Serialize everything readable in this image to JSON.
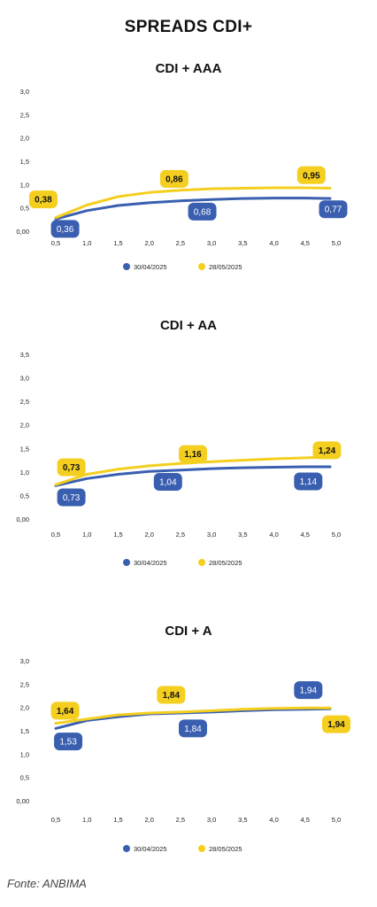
{
  "page_title": "SPREADS CDI+",
  "source": "Fonte: ANBIMA",
  "colors": {
    "series_a": "#3A5FB0",
    "series_b": "#F5CF1F",
    "axis_text": "#222222"
  },
  "chart_data": [
    {
      "type": "line",
      "title": "CDI + AAA",
      "xlabel": "",
      "ylabel": "",
      "xlim": [
        0.25,
        5.0
      ],
      "ylim": [
        0,
        3.0
      ],
      "x_ticks": [
        "0,5",
        "1,0",
        "1,5",
        "2,0",
        "2,5",
        "3,0",
        "3,5",
        "4,0",
        "4,5",
        "5,0"
      ],
      "y_ticks": [
        "0,00",
        "0,5",
        "1,0",
        "1,5",
        "2,0",
        "2,5",
        "3,0"
      ],
      "legend": "bottom",
      "grid": false,
      "series": [
        {
          "name": "30/04/2025",
          "color": "#3A5FB0",
          "x": [
            0.5,
            1.0,
            1.5,
            2.0,
            2.5,
            3.0,
            3.5,
            4.0,
            4.5,
            4.9
          ],
          "y": [
            0.26,
            0.44,
            0.55,
            0.61,
            0.65,
            0.68,
            0.7,
            0.71,
            0.71,
            0.7
          ]
        },
        {
          "name": "28/05/2025",
          "color": "#F5CF1F",
          "x": [
            0.5,
            1.0,
            1.5,
            2.0,
            2.5,
            3.0,
            3.5,
            4.0,
            4.5,
            4.9
          ],
          "y": [
            0.29,
            0.56,
            0.74,
            0.83,
            0.88,
            0.91,
            0.92,
            0.93,
            0.93,
            0.92
          ]
        }
      ],
      "labels": [
        {
          "text": "0,38",
          "series": 1,
          "x": 0.3,
          "y": 0.68
        },
        {
          "text": "0,36",
          "series": 0,
          "x": 0.65,
          "y": 0.05
        },
        {
          "text": "0,86",
          "series": 1,
          "x": 2.4,
          "y": 1.12
        },
        {
          "text": "0,68",
          "series": 0,
          "x": 2.85,
          "y": 0.42
        },
        {
          "text": "0,95",
          "series": 1,
          "x": 4.6,
          "y": 1.2
        },
        {
          "text": "0,77",
          "series": 0,
          "x": 4.95,
          "y": 0.47
        }
      ]
    },
    {
      "type": "line",
      "title": "CDI + AA",
      "xlabel": "",
      "ylabel": "",
      "xlim": [
        0.25,
        5.0
      ],
      "ylim": [
        0,
        3.5
      ],
      "x_ticks": [
        "0,5",
        "1,0",
        "1,5",
        "2,0",
        "2,5",
        "3,0",
        "3,5",
        "4,0",
        "4,5",
        "5,0"
      ],
      "y_ticks": [
        "0,00",
        "0,5",
        "1,0",
        "1,5",
        "2,0",
        "2,5",
        "3,0",
        "3,5"
      ],
      "legend": "bottom",
      "grid": false,
      "series": [
        {
          "name": "30/04/2025",
          "color": "#3A5FB0",
          "x": [
            0.5,
            1.0,
            1.5,
            2.0,
            2.5,
            3.0,
            3.5,
            4.0,
            4.5,
            4.9
          ],
          "y": [
            0.71,
            0.86,
            0.95,
            1.01,
            1.04,
            1.07,
            1.09,
            1.1,
            1.11,
            1.11
          ]
        },
        {
          "name": "28/05/2025",
          "color": "#F5CF1F",
          "x": [
            0.5,
            1.0,
            1.5,
            2.0,
            2.5,
            3.0,
            3.5,
            4.0,
            4.5,
            4.9
          ],
          "y": [
            0.73,
            0.95,
            1.06,
            1.13,
            1.18,
            1.22,
            1.25,
            1.28,
            1.3,
            1.32
          ]
        }
      ],
      "labels": [
        {
          "text": "0,73",
          "series": 1,
          "x": 0.75,
          "y": 1.1
        },
        {
          "text": "0,73",
          "series": 0,
          "x": 0.75,
          "y": 0.46
        },
        {
          "text": "1,16",
          "series": 1,
          "x": 2.7,
          "y": 1.38
        },
        {
          "text": "1,04",
          "series": 0,
          "x": 2.3,
          "y": 0.79
        },
        {
          "text": "1,24",
          "series": 1,
          "x": 4.85,
          "y": 1.46
        },
        {
          "text": "1,14",
          "series": 0,
          "x": 4.55,
          "y": 0.8
        }
      ]
    },
    {
      "type": "line",
      "title": "CDI + A",
      "xlabel": "",
      "ylabel": "",
      "xlim": [
        0.25,
        5.0
      ],
      "ylim": [
        0,
        3.0
      ],
      "x_ticks": [
        "0,5",
        "1,0",
        "1,5",
        "2,0",
        "2,5",
        "3,0",
        "3,5",
        "4,0",
        "4,5",
        "5,0"
      ],
      "y_ticks": [
        "0,00",
        "0,5",
        "1,0",
        "1,5",
        "2,0",
        "2,5",
        "3,0"
      ],
      "legend": "bottom",
      "grid": false,
      "series": [
        {
          "name": "30/04/2025",
          "color": "#3A5FB0",
          "x": [
            0.5,
            1.0,
            1.5,
            2.0,
            2.5,
            3.0,
            3.5,
            4.0,
            4.5,
            4.9
          ],
          "y": [
            1.55,
            1.72,
            1.8,
            1.86,
            1.88,
            1.9,
            1.93,
            1.95,
            1.96,
            1.97
          ]
        },
        {
          "name": "28/05/2025",
          "color": "#F5CF1F",
          "x": [
            0.5,
            1.0,
            1.5,
            2.0,
            2.5,
            3.0,
            3.5,
            4.0,
            4.5,
            4.9
          ],
          "y": [
            1.66,
            1.75,
            1.84,
            1.88,
            1.9,
            1.93,
            1.96,
            1.98,
            1.99,
            1.99
          ]
        }
      ],
      "labels": [
        {
          "text": "1,64",
          "series": 1,
          "x": 0.65,
          "y": 1.93
        },
        {
          "text": "1,53",
          "series": 0,
          "x": 0.7,
          "y": 1.27
        },
        {
          "text": "1,84",
          "series": 1,
          "x": 2.35,
          "y": 2.27
        },
        {
          "text": "1,84",
          "series": 0,
          "x": 2.7,
          "y": 1.55
        },
        {
          "text": "1,94",
          "series": 0,
          "x": 4.55,
          "y": 2.37
        },
        {
          "text": "1,94",
          "series": 1,
          "x": 5.0,
          "y": 1.64
        }
      ]
    }
  ]
}
